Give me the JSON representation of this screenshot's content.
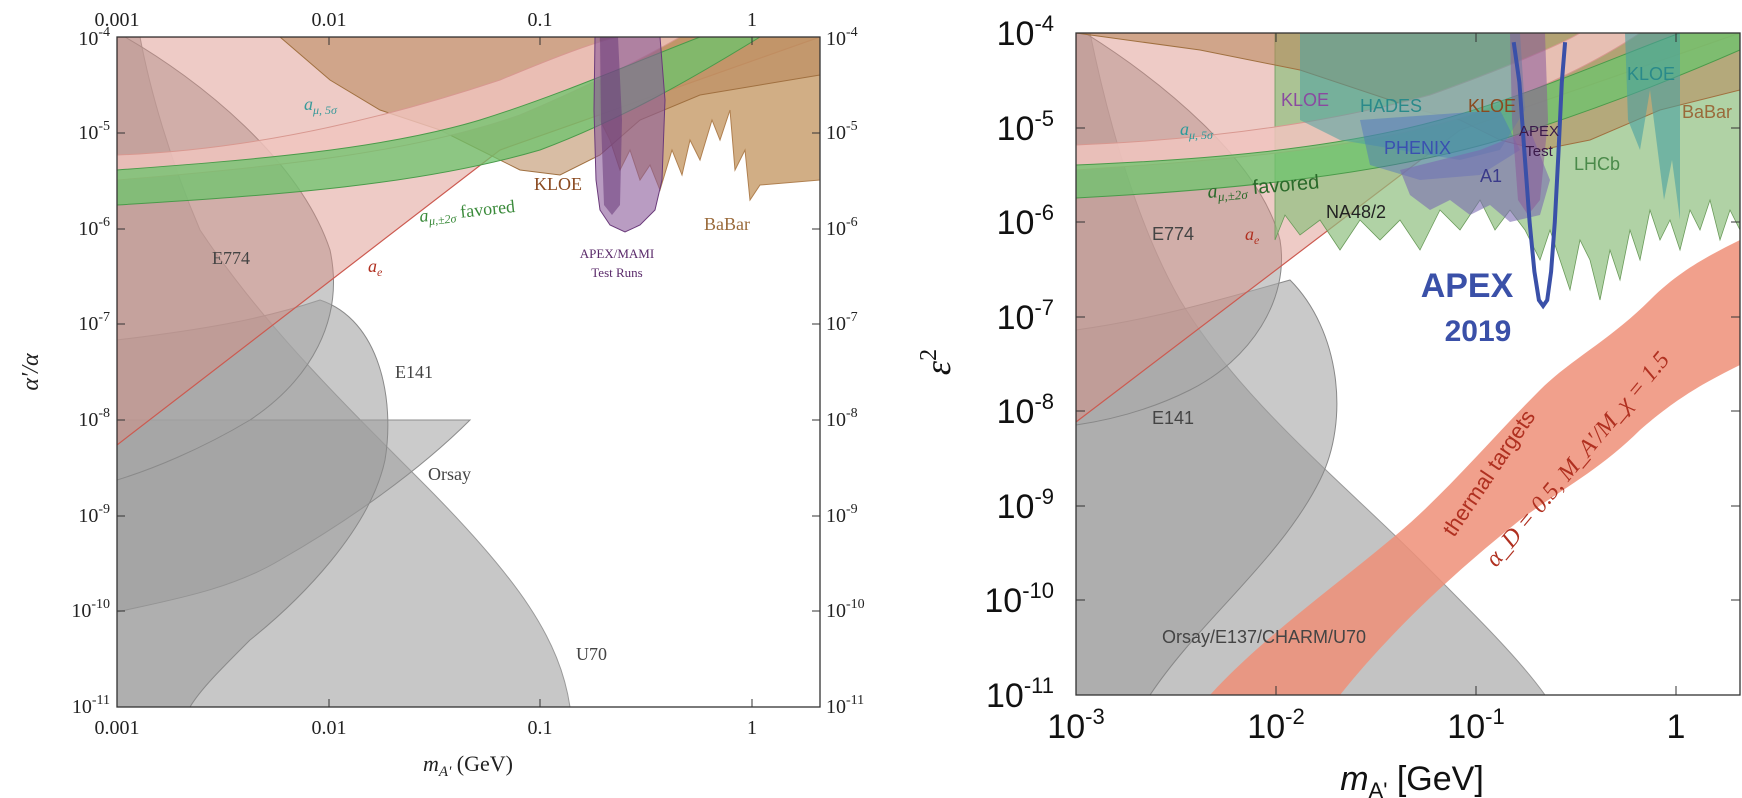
{
  "chart_data": [
    {
      "type": "area",
      "xlabel_main": "m",
      "xlabel_sub": "A'",
      "xlabel_unit": " (GeV)",
      "ylabel": "α′/α",
      "x_scale": "log",
      "y_scale": "log",
      "xlim": [
        0.001,
        2
      ],
      "ylim": [
        1e-11,
        0.0001
      ],
      "x_ticks": [
        "0.001",
        "0.01",
        "0.1",
        "1"
      ],
      "x_ticks_top": [
        "0.001",
        "0.01",
        "0.1",
        "1"
      ],
      "y_tick_exponents": [
        "-11",
        "-10",
        "-9",
        "-8",
        "-7",
        "-6",
        "-5",
        "-4"
      ],
      "y_tick_base": "10",
      "grid": false,
      "regions": [
        {
          "name": "E774",
          "color": "#a8a8a8"
        },
        {
          "name": "E141",
          "color": "#a8a8a8"
        },
        {
          "name": "Orsay",
          "color": "#a8a8a8"
        },
        {
          "name": "U70",
          "color": "#a8a8a8"
        },
        {
          "name": "a_e",
          "color": "#d98b80"
        },
        {
          "name": "KLOE",
          "color": "#b8875a"
        },
        {
          "name": "BaBar",
          "color": "#c9a070"
        },
        {
          "name": "APEX/MAMI Test Runs",
          "color": "#8a5a9a"
        },
        {
          "name": "a_μ,±2σ favored",
          "color": "#5dbb5d"
        },
        {
          "name": "a_μ,5σ",
          "color": "#e8b0aa"
        }
      ],
      "labels": {
        "e774": "E774",
        "e141": "E141",
        "orsay": "Orsay",
        "u70": "U70",
        "ae_main": "a",
        "ae_sub": "e",
        "kloe": "KLOE",
        "babar": "BaBar",
        "apex_line1": "APEX/MAMI",
        "apex_line2": "Test Runs",
        "amu2_main": "a",
        "amu2_sub": "μ,±2σ",
        "amu2_rest": " favored",
        "amu5_main": "a",
        "amu5_sub": "μ, 5σ"
      }
    },
    {
      "type": "area",
      "xlabel_main": "m",
      "xlabel_sub": "A'",
      "xlabel_unit": " [GeV]",
      "ylabel_main": "ε",
      "ylabel_sup": "2",
      "x_scale": "log",
      "y_scale": "log",
      "xlim": [
        0.001,
        2
      ],
      "ylim": [
        1e-11,
        0.0001
      ],
      "x_tick_exponents": [
        "-3",
        "-2",
        "-1"
      ],
      "x_tick_base": "10",
      "x_tick_last": "1",
      "y_tick_exponents": [
        "-11",
        "-10",
        "-9",
        "-8",
        "-7",
        "-6",
        "-5",
        "-4"
      ],
      "y_tick_base": "10",
      "grid": false,
      "regions": [
        {
          "name": "E774",
          "color": "#a8a8a8"
        },
        {
          "name": "E141",
          "color": "#a8a8a8"
        },
        {
          "name": "Orsay/E137/CHARM/U70",
          "color": "#a8a8a8"
        },
        {
          "name": "a_e",
          "color": "#d98b80"
        },
        {
          "name": "KLOE",
          "color": "#b8875a"
        },
        {
          "name": "HADES",
          "color": "#4aa0a0"
        },
        {
          "name": "PHENIX",
          "color": "#4a70c0"
        },
        {
          "name": "NA48/2",
          "color": "#6aa0a8"
        },
        {
          "name": "A1",
          "color": "#7a6ab0"
        },
        {
          "name": "APEX Test",
          "color": "#6a3a7a"
        },
        {
          "name": "LHCb",
          "color": "#6ab06a"
        },
        {
          "name": "BaBar",
          "color": "#c9a070"
        },
        {
          "name": "thermal targets",
          "color": "#ef8f78"
        },
        {
          "name": "APEX 2019",
          "color": "#3a50a8"
        }
      ],
      "labels": {
        "e774": "E774",
        "e141": "E141",
        "orsay_group": "Orsay/E137/CHARM/U70",
        "kloe_purple": "KLOE",
        "hades": "HADES",
        "kloe_brown": "KLOE",
        "kloe_teal": "KLOE",
        "babar": "BaBar",
        "apex_test_line1": "APEX",
        "apex_test_line2": "Test",
        "phenix": "PHENIX",
        "a1": "A1",
        "lhcb": "LHCb",
        "na48": "NA48/2",
        "amu5_main": "a",
        "amu5_sub": "μ, 5σ",
        "amu2_main": "a",
        "amu2_sub": "μ,±2σ",
        "amu2_rest": " favored",
        "ae_main": "a",
        "ae_sub": "e",
        "apex2019_line1": "APEX",
        "apex2019_line2": "2019",
        "thermal_line1": "thermal targets",
        "thermal_line2": "α_D = 0.5, M_A′/M_χ = 1.5"
      },
      "apex2019_curve": {
        "x": [
          0.15,
          0.16,
          0.17,
          0.18,
          0.19,
          0.2,
          0.21,
          0.22,
          0.23,
          0.24,
          0.25,
          0.26,
          0.27
        ],
        "y": [
          8e-05,
          3e-05,
          5e-06,
          1e-06,
          3e-07,
          1.5e-07,
          1.3e-07,
          1.5e-07,
          3e-07,
          1e-06,
          5e-06,
          3e-05,
          8e-05
        ]
      }
    }
  ]
}
